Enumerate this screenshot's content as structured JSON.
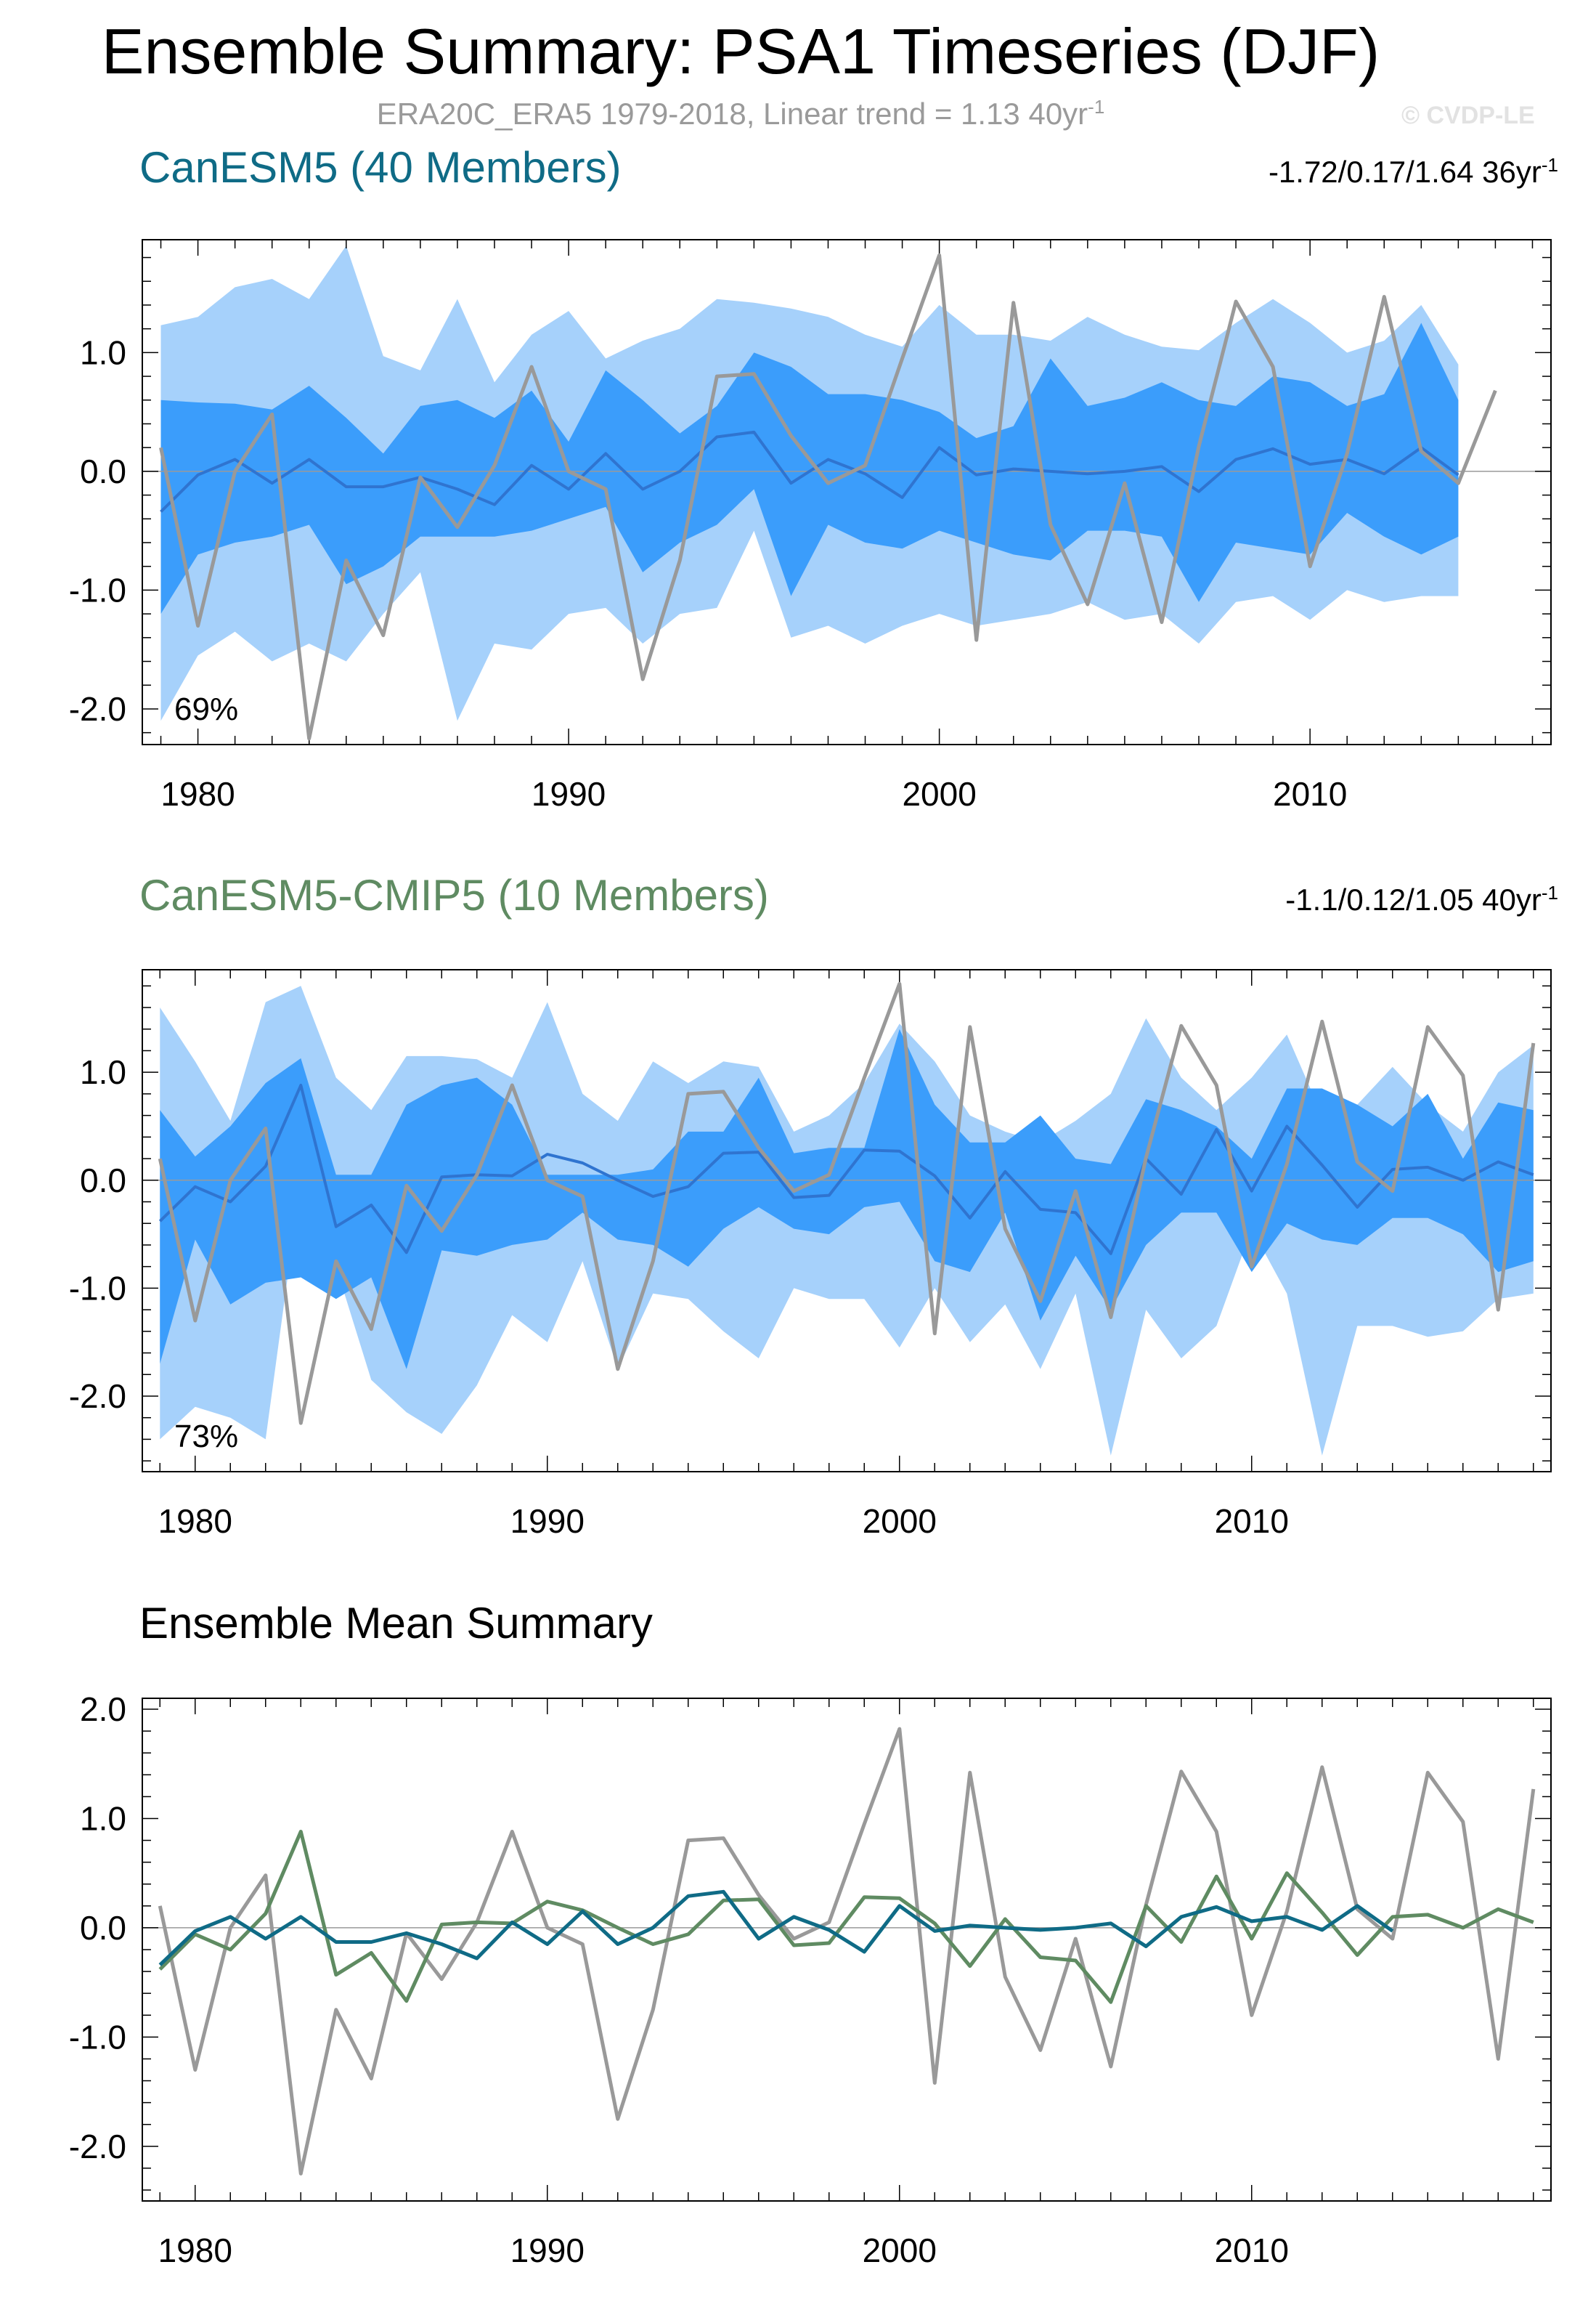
{
  "title": "Ensemble Summary: PSA1 Timeseries (DJF)",
  "subtitle": "ERA20C_ERA5 1979-2018, Linear trend = 1.13 40yr",
  "subtitle_sup": "-1",
  "watermark": "© CVDP-LE",
  "colors": {
    "canesm5": "#0f6b86",
    "cmip5": "#5f8b62",
    "obs": "#999999",
    "band_outer": "#a6d1fb",
    "band_inner": "#3b9dfb",
    "mean_line": "#2f74d0"
  },
  "chart_data": [
    {
      "type": "area",
      "panel": "canesm5",
      "title": "CanESM5 (40 Members)",
      "stat_text": "-1.72/0.17/1.64 36yr",
      "stat_sup": "-1",
      "percent_label": "69%",
      "xlim": [
        1978.5,
        2016.5
      ],
      "ylim": [
        -2.3,
        1.95
      ],
      "yticks": [
        -2.0,
        -1.0,
        0.0,
        1.0
      ],
      "ytick_labels": [
        "-2.0",
        "-1.0",
        "0.0",
        "1.0"
      ],
      "xticks": [
        1980,
        1990,
        2000,
        2010
      ],
      "xtick_labels": [
        "1980",
        "1990",
        "2000",
        "2010"
      ],
      "x": [
        1979,
        1980,
        1981,
        1982,
        1983,
        1984,
        1985,
        1986,
        1987,
        1988,
        1989,
        1990,
        1991,
        1992,
        1993,
        1994,
        1995,
        1996,
        1997,
        1998,
        1999,
        2000,
        2001,
        2002,
        2003,
        2004,
        2005,
        2006,
        2007,
        2008,
        2009,
        2010,
        2011,
        2012,
        2013,
        2014
      ],
      "band_outer_upper": [
        1.23,
        1.3,
        1.55,
        1.62,
        1.45,
        1.9,
        0.97,
        0.85,
        1.45,
        0.75,
        1.15,
        1.35,
        0.95,
        1.1,
        1.2,
        1.45,
        1.42,
        1.37,
        1.3,
        1.15,
        1.05,
        1.4,
        1.15,
        1.15,
        1.1,
        1.3,
        1.15,
        1.05,
        1.02,
        1.25,
        1.45,
        1.25,
        1.0,
        1.1,
        1.4,
        0.9
      ],
      "band_inner_upper": [
        0.6,
        0.58,
        0.57,
        0.52,
        0.72,
        0.45,
        0.15,
        0.55,
        0.6,
        0.45,
        0.68,
        0.25,
        0.85,
        0.6,
        0.32,
        0.55,
        1.0,
        0.88,
        0.65,
        0.65,
        0.6,
        0.5,
        0.28,
        0.38,
        0.95,
        0.55,
        0.62,
        0.75,
        0.6,
        0.55,
        0.8,
        0.75,
        0.55,
        0.65,
        1.25,
        0.6
      ],
      "mean": [
        -0.34,
        -0.03,
        0.1,
        -0.1,
        0.1,
        -0.13,
        -0.13,
        -0.05,
        -0.15,
        -0.28,
        0.05,
        -0.15,
        0.15,
        -0.15,
        0.0,
        0.29,
        0.33,
        -0.1,
        0.1,
        -0.02,
        -0.22,
        0.2,
        -0.03,
        0.02,
        0.0,
        -0.02,
        0.0,
        0.04,
        -0.17,
        0.1,
        0.19,
        0.06,
        0.1,
        -0.02,
        0.2,
        -0.03
      ],
      "band_inner_lower": [
        -1.2,
        -0.7,
        -0.6,
        -0.55,
        -0.45,
        -0.95,
        -0.8,
        -0.55,
        -0.55,
        -0.55,
        -0.5,
        -0.4,
        -0.3,
        -0.85,
        -0.6,
        -0.45,
        -0.15,
        -1.05,
        -0.45,
        -0.6,
        -0.65,
        -0.5,
        -0.6,
        -0.7,
        -0.75,
        -0.5,
        -0.5,
        -0.55,
        -1.1,
        -0.6,
        -0.65,
        -0.7,
        -0.35,
        -0.55,
        -0.7,
        -0.55
      ],
      "band_outer_lower": [
        -2.1,
        -1.55,
        -1.35,
        -1.6,
        -1.45,
        -1.6,
        -1.2,
        -0.85,
        -2.1,
        -1.45,
        -1.5,
        -1.2,
        -1.15,
        -1.45,
        -1.2,
        -1.15,
        -0.5,
        -1.4,
        -1.3,
        -1.45,
        -1.3,
        -1.2,
        -1.3,
        -1.25,
        -1.2,
        -1.1,
        -1.25,
        -1.2,
        -1.45,
        -1.1,
        -1.05,
        -1.25,
        -1.0,
        -1.1,
        -1.05,
        -1.05
      ],
      "obs_x": [
        1979,
        1980,
        1981,
        1982,
        1983,
        1984,
        1985,
        1986,
        1987,
        1988,
        1989,
        1990,
        1991,
        1992,
        1993,
        1994,
        1995,
        1996,
        1997,
        1998,
        1999,
        2000,
        2001,
        2002,
        2003,
        2004,
        2005,
        2006,
        2007,
        2008,
        2009,
        2010,
        2011,
        2012,
        2013,
        2014,
        2015
      ],
      "obs": [
        0.2,
        -1.3,
        0.0,
        0.48,
        -2.25,
        -0.75,
        -1.38,
        -0.05,
        -0.47,
        0.05,
        0.88,
        0.0,
        -0.15,
        -1.75,
        -0.75,
        0.8,
        0.82,
        0.3,
        -0.1,
        0.05,
        0.95,
        1.82,
        -1.42,
        1.42,
        -0.45,
        -1.12,
        -0.1,
        -1.27,
        0.21,
        1.43,
        0.88,
        -0.8,
        0.15,
        1.47,
        0.17,
        -0.1,
        0.68
      ]
    },
    {
      "type": "area",
      "panel": "cmip5",
      "title": "CanESM5-CMIP5 (10 Members)",
      "stat_text": "-1.1/0.12/1.05 40yr",
      "stat_sup": "-1",
      "percent_label": "73%",
      "xlim": [
        1978.5,
        2018.5
      ],
      "ylim": [
        -2.7,
        1.95
      ],
      "yticks": [
        -2.0,
        -1.0,
        0.0,
        1.0
      ],
      "ytick_labels": [
        "-2.0",
        "-1.0",
        "0.0",
        "1.0"
      ],
      "xticks": [
        1980,
        1990,
        2000,
        2010
      ],
      "xtick_labels": [
        "1980",
        "1990",
        "2000",
        "2010"
      ],
      "x": [
        1979,
        1980,
        1981,
        1982,
        1983,
        1984,
        1985,
        1986,
        1987,
        1988,
        1989,
        1990,
        1991,
        1992,
        1993,
        1994,
        1995,
        1996,
        1997,
        1998,
        1999,
        2000,
        2001,
        2002,
        2003,
        2004,
        2005,
        2006,
        2007,
        2008,
        2009,
        2010,
        2011,
        2012,
        2013,
        2014,
        2015,
        2016,
        2017,
        2018
      ],
      "band_outer_upper": [
        1.6,
        1.1,
        0.55,
        1.65,
        1.8,
        0.95,
        0.65,
        1.15,
        1.15,
        1.12,
        0.95,
        1.65,
        0.8,
        0.55,
        1.1,
        0.9,
        1.1,
        1.05,
        0.45,
        0.6,
        0.9,
        1.45,
        1.1,
        0.6,
        0.45,
        0.35,
        0.55,
        0.8,
        1.5,
        0.95,
        0.65,
        0.95,
        1.35,
        0.6,
        0.7,
        1.05,
        0.7,
        0.45,
        1.0,
        1.25
      ],
      "band_inner_upper": [
        0.65,
        0.22,
        0.5,
        0.9,
        1.13,
        0.05,
        0.05,
        0.7,
        0.88,
        0.95,
        0.7,
        0.05,
        0.05,
        0.05,
        0.1,
        0.45,
        0.45,
        0.95,
        0.25,
        0.3,
        0.3,
        1.4,
        0.7,
        0.35,
        0.35,
        0.6,
        0.2,
        0.15,
        0.75,
        0.65,
        0.5,
        0.2,
        0.85,
        0.85,
        0.7,
        0.5,
        0.8,
        0.2,
        0.72,
        0.65
      ],
      "mean": [
        -0.38,
        -0.06,
        -0.2,
        0.13,
        0.88,
        -0.43,
        -0.23,
        -0.67,
        0.03,
        0.05,
        0.04,
        0.24,
        0.16,
        0.0,
        -0.15,
        -0.06,
        0.25,
        0.26,
        -0.16,
        -0.14,
        0.28,
        0.27,
        0.04,
        -0.35,
        0.08,
        -0.27,
        -0.3,
        -0.68,
        0.2,
        -0.13,
        0.47,
        -0.1,
        0.5,
        0.14,
        -0.25,
        0.1,
        0.12,
        0.0,
        0.17,
        0.05
      ],
      "band_inner_lower": [
        -1.7,
        -0.55,
        -1.15,
        -0.95,
        -0.9,
        -1.1,
        -0.9,
        -1.75,
        -0.65,
        -0.7,
        -0.6,
        -0.55,
        -0.3,
        -0.55,
        -0.6,
        -0.8,
        -0.45,
        -0.25,
        -0.45,
        -0.5,
        -0.25,
        -0.2,
        -0.75,
        -0.85,
        -0.3,
        -1.3,
        -0.7,
        -1.2,
        -0.6,
        -0.3,
        -0.3,
        -0.85,
        -0.4,
        -0.55,
        -0.6,
        -0.35,
        -0.35,
        -0.5,
        -0.85,
        -0.75
      ],
      "band_outer_lower": [
        -2.4,
        -2.1,
        -2.2,
        -2.4,
        0.0,
        -0.8,
        -1.85,
        -2.15,
        -2.35,
        -1.9,
        -1.25,
        -1.5,
        -0.75,
        -1.75,
        -1.05,
        -1.1,
        -1.4,
        -1.65,
        -1.0,
        -1.1,
        -1.1,
        -1.55,
        -1.0,
        -1.5,
        -1.15,
        -1.75,
        -1.05,
        -2.55,
        -1.2,
        -1.65,
        -1.35,
        -0.45,
        -1.05,
        -2.55,
        -1.35,
        -1.35,
        -1.45,
        -1.4,
        -1.1,
        -1.05
      ],
      "obs_x": [
        1979,
        1980,
        1981,
        1982,
        1983,
        1984,
        1985,
        1986,
        1987,
        1988,
        1989,
        1990,
        1991,
        1992,
        1993,
        1994,
        1995,
        1996,
        1997,
        1998,
        1999,
        2000,
        2001,
        2002,
        2003,
        2004,
        2005,
        2006,
        2007,
        2008,
        2009,
        2010,
        2011,
        2012,
        2013,
        2014,
        2015,
        2016,
        2017,
        2018
      ],
      "obs": [
        0.2,
        -1.3,
        0.0,
        0.48,
        -2.25,
        -0.75,
        -1.38,
        -0.05,
        -0.47,
        0.05,
        0.88,
        0.0,
        -0.15,
        -1.75,
        -0.75,
        0.8,
        0.82,
        0.3,
        -0.1,
        0.05,
        0.95,
        1.82,
        -1.42,
        1.42,
        -0.45,
        -1.12,
        -0.1,
        -1.27,
        0.21,
        1.43,
        0.88,
        -0.8,
        0.15,
        1.47,
        0.17,
        -0.1,
        1.42,
        0.97,
        -1.2,
        1.27
      ]
    },
    {
      "type": "line",
      "panel": "summary",
      "title": "Ensemble Mean Summary",
      "xlim": [
        1978.5,
        2018.5
      ],
      "ylim": [
        -2.5,
        2.1
      ],
      "yticks": [
        -2.0,
        -1.0,
        0.0,
        1.0,
        2.0
      ],
      "ytick_labels": [
        "-2.0",
        "-1.0",
        "0.0",
        "1.0",
        "2.0"
      ],
      "xticks": [
        1980,
        1990,
        2000,
        2010
      ],
      "xtick_labels": [
        "1980",
        "1990",
        "2000",
        "2010"
      ],
      "series": [
        {
          "name": "ERA20C_ERA5",
          "color": "#999999",
          "x": [
            1979,
            1980,
            1981,
            1982,
            1983,
            1984,
            1985,
            1986,
            1987,
            1988,
            1989,
            1990,
            1991,
            1992,
            1993,
            1994,
            1995,
            1996,
            1997,
            1998,
            1999,
            2000,
            2001,
            2002,
            2003,
            2004,
            2005,
            2006,
            2007,
            2008,
            2009,
            2010,
            2011,
            2012,
            2013,
            2014,
            2015,
            2016,
            2017,
            2018
          ],
          "values": [
            0.2,
            -1.3,
            0.0,
            0.48,
            -2.25,
            -0.75,
            -1.38,
            -0.05,
            -0.47,
            0.05,
            0.88,
            0.0,
            -0.15,
            -1.75,
            -0.75,
            0.8,
            0.82,
            0.3,
            -0.1,
            0.05,
            0.95,
            1.82,
            -1.42,
            1.42,
            -0.45,
            -1.12,
            -0.1,
            -1.27,
            0.21,
            1.43,
            0.88,
            -0.8,
            0.15,
            1.47,
            0.17,
            -0.1,
            1.42,
            0.97,
            -1.2,
            1.27
          ]
        },
        {
          "name": "CanESM5-CMIP5",
          "color": "#5f8b62",
          "x": [
            1979,
            1980,
            1981,
            1982,
            1983,
            1984,
            1985,
            1986,
            1987,
            1988,
            1989,
            1990,
            1991,
            1992,
            1993,
            1994,
            1995,
            1996,
            1997,
            1998,
            1999,
            2000,
            2001,
            2002,
            2003,
            2004,
            2005,
            2006,
            2007,
            2008,
            2009,
            2010,
            2011,
            2012,
            2013,
            2014,
            2015,
            2016,
            2017,
            2018
          ],
          "values": [
            -0.38,
            -0.06,
            -0.2,
            0.13,
            0.88,
            -0.43,
            -0.23,
            -0.67,
            0.03,
            0.05,
            0.04,
            0.24,
            0.16,
            0.0,
            -0.15,
            -0.06,
            0.25,
            0.26,
            -0.16,
            -0.14,
            0.28,
            0.27,
            0.04,
            -0.35,
            0.08,
            -0.27,
            -0.3,
            -0.68,
            0.2,
            -0.13,
            0.47,
            -0.1,
            0.5,
            0.14,
            -0.25,
            0.1,
            0.12,
            0.0,
            0.17,
            0.05
          ]
        },
        {
          "name": "CanESM5",
          "color": "#0f6b86",
          "x": [
            1979,
            1980,
            1981,
            1982,
            1983,
            1984,
            1985,
            1986,
            1987,
            1988,
            1989,
            1990,
            1991,
            1992,
            1993,
            1994,
            1995,
            1996,
            1997,
            1998,
            1999,
            2000,
            2001,
            2002,
            2003,
            2004,
            2005,
            2006,
            2007,
            2008,
            2009,
            2010,
            2011,
            2012,
            2013,
            2014
          ],
          "values": [
            -0.34,
            -0.03,
            0.1,
            -0.1,
            0.1,
            -0.13,
            -0.13,
            -0.05,
            -0.15,
            -0.28,
            0.05,
            -0.15,
            0.15,
            -0.15,
            0.0,
            0.29,
            0.33,
            -0.1,
            0.1,
            -0.02,
            -0.22,
            0.2,
            -0.03,
            0.02,
            0.0,
            -0.02,
            0.0,
            0.04,
            -0.17,
            0.1,
            0.19,
            0.06,
            0.1,
            -0.02,
            0.2,
            -0.03
          ]
        }
      ]
    }
  ]
}
